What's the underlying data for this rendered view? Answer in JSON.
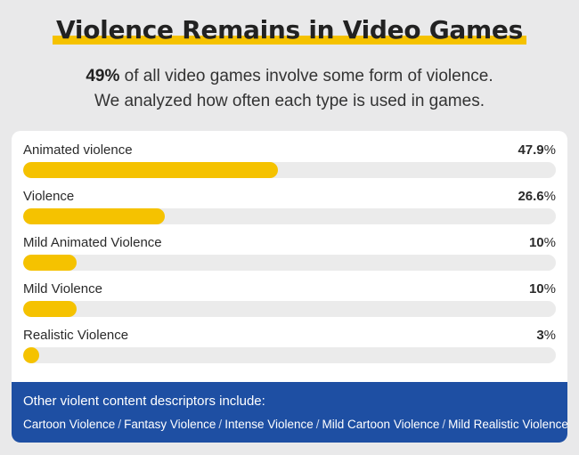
{
  "header": {
    "title": "Violence Remains in Video Games",
    "subtitle_bold": "49%",
    "subtitle_line1_rest": " of all video games involve some form of violence.",
    "subtitle_line2": "We analyzed how often each type is used in games."
  },
  "chart_data": {
    "type": "bar",
    "orientation": "horizontal",
    "categories": [
      "Animated violence",
      "Violence",
      "Mild Animated Violence",
      "Mild Violence",
      "Realistic Violence"
    ],
    "values": [
      47.9,
      26.6,
      10,
      10,
      3
    ],
    "value_labels": [
      "47.9%",
      "26.6%",
      "10%",
      "10%",
      "3%"
    ],
    "unit": "%",
    "xlim": [
      0,
      100
    ],
    "grid": false,
    "bar_color": "#f5c200",
    "track_color": "#ebebeb"
  },
  "footer": {
    "heading": "Other violent content descriptors include:",
    "items": [
      "Cartoon Violence",
      "Fantasy Violence",
      "Intense Violence",
      "Mild Cartoon Violence",
      "Mild Realistic Violence"
    ],
    "background": "#1e4fa3"
  }
}
